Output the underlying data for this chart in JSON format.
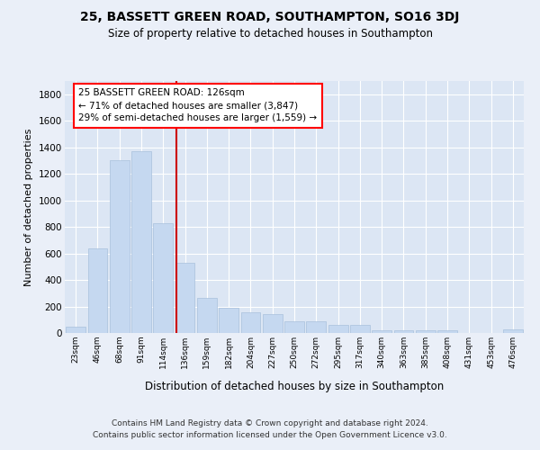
{
  "title": "25, BASSETT GREEN ROAD, SOUTHAMPTON, SO16 3DJ",
  "subtitle": "Size of property relative to detached houses in Southampton",
  "xlabel": "Distribution of detached houses by size in Southampton",
  "ylabel": "Number of detached properties",
  "footer_line1": "Contains HM Land Registry data © Crown copyright and database right 2024.",
  "footer_line2": "Contains public sector information licensed under the Open Government Licence v3.0.",
  "annotation_title": "25 BASSETT GREEN ROAD: 126sqm",
  "annotation_line2": "← 71% of detached houses are smaller (3,847)",
  "annotation_line3": "29% of semi-detached houses are larger (1,559) →",
  "bar_color": "#c5d8f0",
  "bar_edge_color": "#a8c0dc",
  "vline_color": "#cc0000",
  "categories": [
    "23sqm",
    "46sqm",
    "68sqm",
    "91sqm",
    "114sqm",
    "136sqm",
    "159sqm",
    "182sqm",
    "204sqm",
    "227sqm",
    "250sqm",
    "272sqm",
    "295sqm",
    "317sqm",
    "340sqm",
    "363sqm",
    "385sqm",
    "408sqm",
    "431sqm",
    "453sqm",
    "476sqm"
  ],
  "values": [
    50,
    635,
    1300,
    1370,
    830,
    530,
    265,
    190,
    155,
    140,
    90,
    88,
    60,
    60,
    22,
    18,
    18,
    18,
    0,
    0,
    28
  ],
  "ylim": [
    0,
    1900
  ],
  "yticks": [
    0,
    200,
    400,
    600,
    800,
    1000,
    1200,
    1400,
    1600,
    1800
  ],
  "bg_color": "#eaeff8",
  "plot_bg_color": "#dce6f4",
  "grid_color": "#ffffff",
  "vline_index": 4.62
}
